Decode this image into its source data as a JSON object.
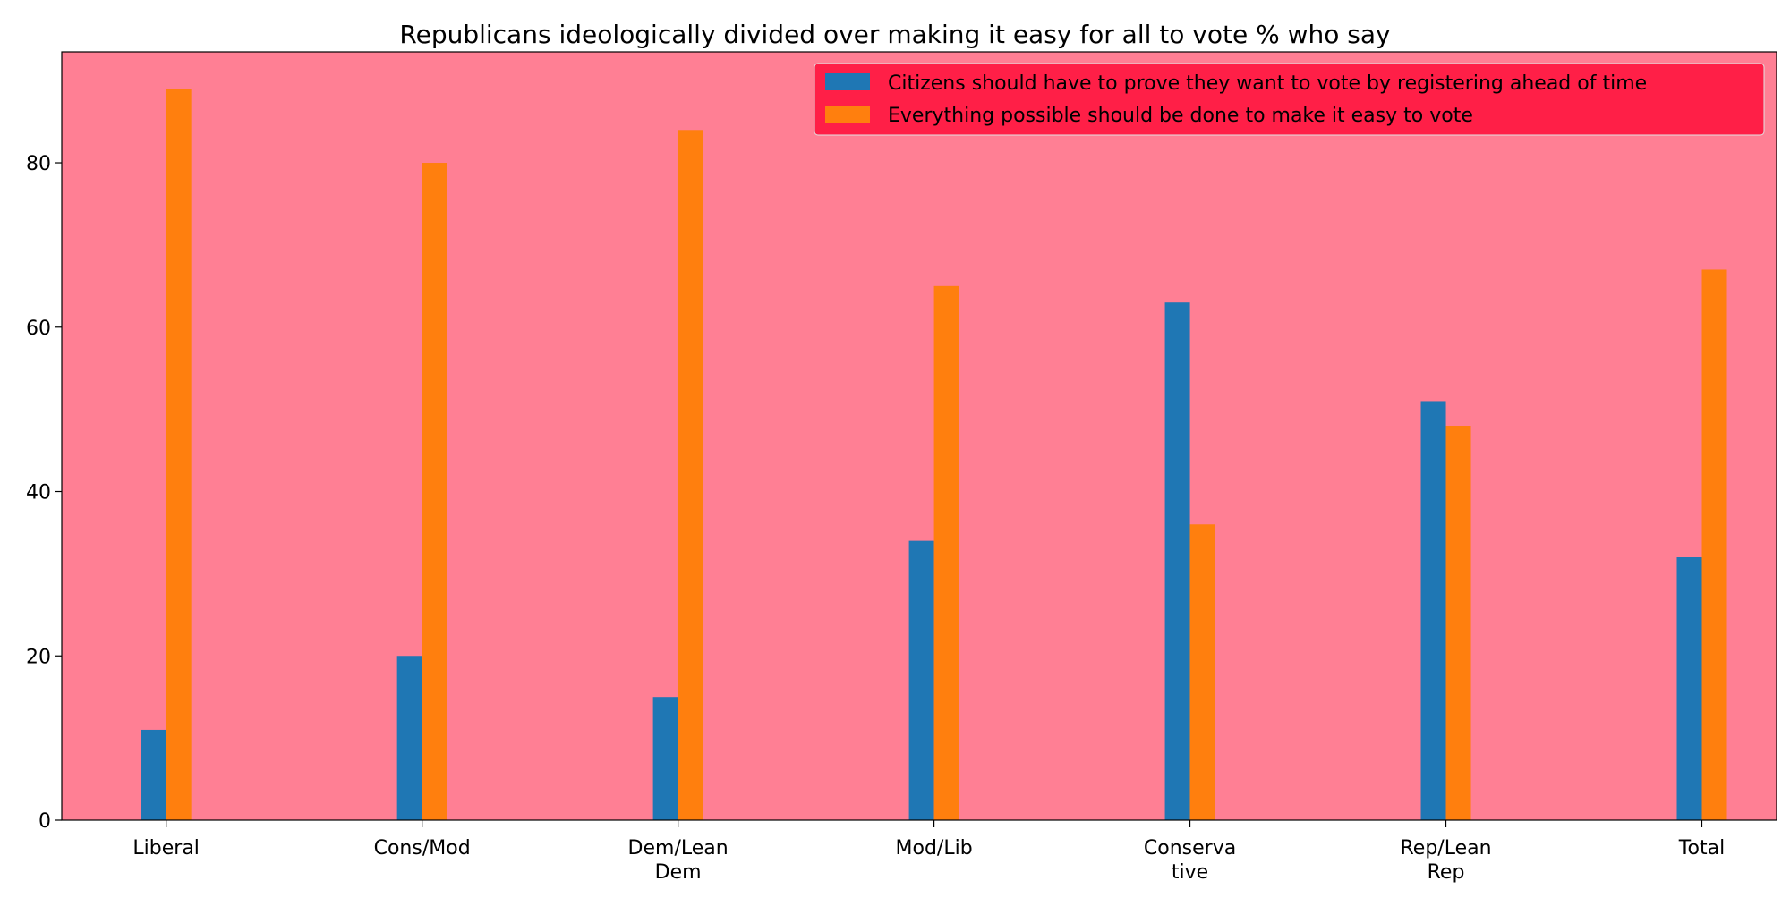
{
  "chart_data": {
    "type": "bar",
    "title": "Republicans ideologically divided over making it easy for all to vote % who say",
    "xlabel": "",
    "ylabel": "",
    "categories": [
      [
        "Liberal"
      ],
      [
        "Cons/Mod"
      ],
      [
        "Dem/Lean",
        "Dem"
      ],
      [
        "Mod/Lib"
      ],
      [
        "Conserva",
        "tive"
      ],
      [
        "Rep/Lean",
        "Rep"
      ],
      [
        "Total"
      ]
    ],
    "series": [
      {
        "name": "Citizens should have to prove they want to vote by registering ahead of time",
        "color": "#1f77b4",
        "values": [
          11,
          20,
          15,
          34,
          63,
          51,
          32
        ]
      },
      {
        "name": "Everything possible should be done to make it easy to vote",
        "color": "#ff7f0e",
        "values": [
          89,
          80,
          84,
          65,
          36,
          48,
          67
        ]
      }
    ],
    "ylim": [
      0,
      93.5
    ],
    "yticks": [
      0,
      20,
      40,
      60,
      80
    ],
    "grid": false,
    "legend_position": "top-right",
    "plot_background": "#ff7f94",
    "legend_background": "#ff1f47"
  }
}
